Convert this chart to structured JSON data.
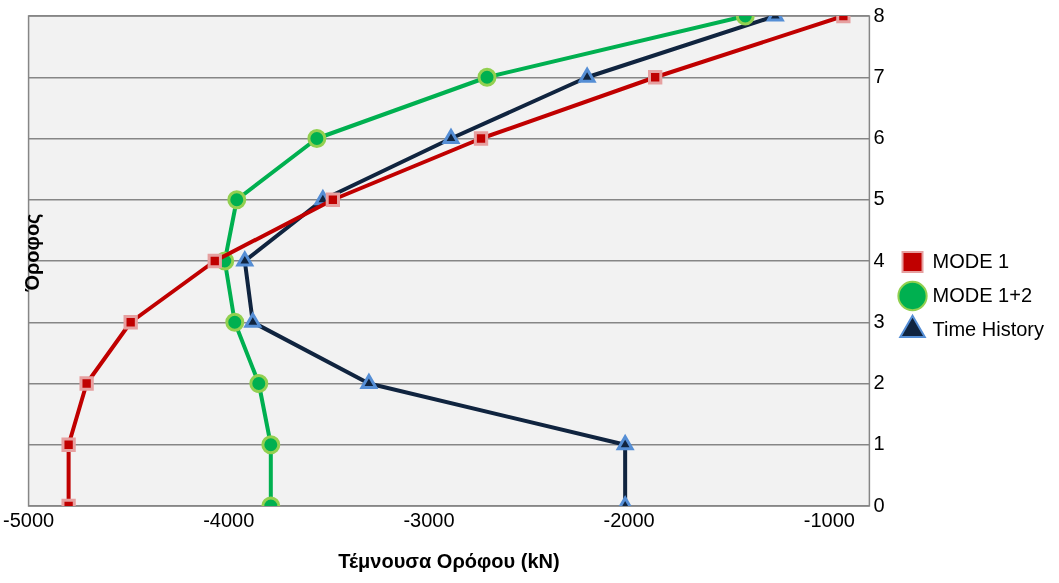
{
  "chart_data": {
    "type": "line",
    "xlabel": "Τέμνουσα Ορόφου (kN)",
    "ylabel": "Όροφος",
    "xlim": [
      -5000,
      -800
    ],
    "xticks": [
      -5000,
      -4000,
      -3000,
      -2000,
      -1000
    ],
    "ylim": [
      0,
      8
    ],
    "yticks": [
      0,
      1,
      2,
      3,
      4,
      5,
      6,
      7,
      8
    ],
    "grid": "y",
    "legend": "right",
    "line_style": "solid",
    "series": [
      {
        "name": "MODE 1",
        "color": "#c00000",
        "marker": "square",
        "x": [
          -4800,
          -4800,
          -4710,
          -4490,
          -4070,
          -3480,
          -2740,
          -1870,
          -930
        ],
        "values": [
          0,
          1,
          2,
          3,
          4,
          5,
          6,
          7,
          8
        ]
      },
      {
        "name": "MODE 1+2",
        "color": "#00b050",
        "marker": "circle",
        "x": [
          -3790,
          -3790,
          -3850,
          -3970,
          -4020,
          -3960,
          -3560,
          -2710,
          -1420
        ],
        "values": [
          0,
          1,
          2,
          3,
          4,
          5,
          6,
          7,
          8
        ]
      },
      {
        "name": "Time History",
        "color": "#10243f",
        "marker": "triangle",
        "x": [
          -2020,
          -2020,
          -3300,
          -3880,
          -3920,
          -3530,
          -2890,
          -2210,
          -1270
        ],
        "values": [
          0,
          1,
          2,
          3,
          4,
          5,
          6,
          7,
          8
        ]
      }
    ]
  }
}
